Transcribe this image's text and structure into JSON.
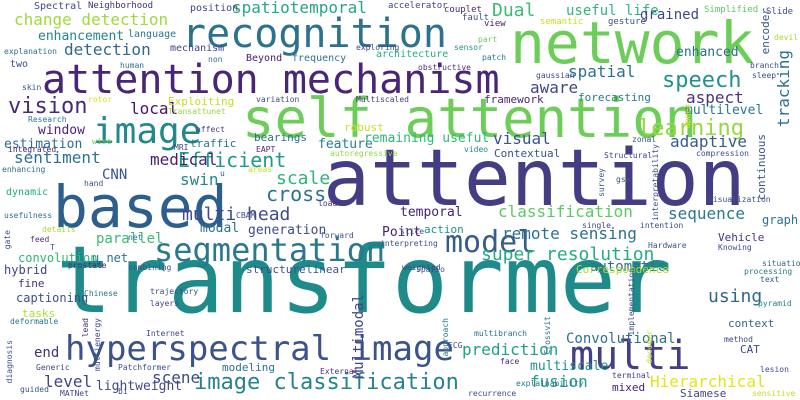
{
  "words": [
    {
      "text": "transformer",
      "color": "#1f8a8a"
    },
    {
      "text": "attention",
      "color": "#433d84"
    },
    {
      "text": "based",
      "color": "#2d5f8e"
    },
    {
      "text": "self attention",
      "color": "#6cce59"
    },
    {
      "text": "network",
      "color": "#6cce59"
    },
    {
      "text": "attention mechanism",
      "color": "#482576"
    },
    {
      "text": "recognition",
      "color": "#2c718e"
    },
    {
      "text": "image",
      "color": "#24878e"
    },
    {
      "text": "hyperspectral image",
      "color": "#3b528b"
    },
    {
      "text": "multi",
      "color": "#433e85"
    },
    {
      "text": "segmentation",
      "color": "#2a788e"
    },
    {
      "text": "model",
      "color": "#375b8d"
    },
    {
      "text": "image classification",
      "color": "#26828e"
    },
    {
      "text": "speech",
      "color": "#21918c"
    },
    {
      "text": "learning",
      "color": "#95d840"
    },
    {
      "text": "vision",
      "color": "#482979"
    },
    {
      "text": "Efficient",
      "color": "#1e9c89"
    },
    {
      "text": "cross",
      "color": "#2c728e"
    },
    {
      "text": "scale",
      "color": "#2fb47c"
    },
    {
      "text": "multi head",
      "color": "#3e4c8a"
    },
    {
      "text": "classification",
      "color": "#5ec962"
    },
    {
      "text": "super resolution",
      "color": "#25ab82"
    },
    {
      "text": "spatiotemporal",
      "color": "#22a785"
    },
    {
      "text": "detection",
      "color": "#31688e"
    },
    {
      "text": "change detection",
      "color": "#a0da39"
    },
    {
      "text": "spatial",
      "color": "#2d708e"
    },
    {
      "text": "Dual",
      "color": "#3bbb75"
    },
    {
      "text": "sequence",
      "color": "#2a788e"
    },
    {
      "text": "prediction",
      "color": "#1fa088"
    },
    {
      "text": "remote sensing",
      "color": "#2d708e"
    },
    {
      "text": "fusion",
      "color": "#1f9e89"
    },
    {
      "text": "level",
      "color": "#414487"
    },
    {
      "text": "scene",
      "color": "#3e4989"
    },
    {
      "text": "visual",
      "color": "#3b528b"
    },
    {
      "text": "medical",
      "color": "#481f70"
    },
    {
      "text": "sentiment",
      "color": "#2c728e"
    },
    {
      "text": "swin",
      "color": "#24868e"
    },
    {
      "text": "local",
      "color": "#481467"
    },
    {
      "text": "aware",
      "color": "#404688"
    },
    {
      "text": "using",
      "color": "#31678e"
    },
    {
      "text": "Hierarchical",
      "color": "#e5e419"
    },
    {
      "text": "tracking",
      "color": "#2c718e"
    },
    {
      "text": "Multimodal",
      "color": "#414487"
    },
    {
      "text": "Convolutional",
      "color": "#2c728e"
    },
    {
      "text": "aspect",
      "color": "#46327e"
    },
    {
      "text": "parallel",
      "color": "#3aba76"
    },
    {
      "text": "CNN",
      "color": "#3b528b"
    },
    {
      "text": "end",
      "color": "#472d7b"
    },
    {
      "text": "adaptive",
      "color": "#375b8d"
    },
    {
      "text": "Point",
      "color": "#481f70"
    },
    {
      "text": "generation",
      "color": "#3e4c8a"
    },
    {
      "text": "automatic",
      "color": "#2c728e"
    },
    {
      "text": "temporal",
      "color": "#482173"
    },
    {
      "text": "window",
      "color": "#482475"
    },
    {
      "text": "estimation",
      "color": "#2e6e8e"
    },
    {
      "text": "modal",
      "color": "#2e6f8e"
    },
    {
      "text": "feature",
      "color": "#287c8e"
    },
    {
      "text": "enhancement",
      "color": "#25848e"
    },
    {
      "text": "useful life",
      "color": "#31b57b"
    },
    {
      "text": "grained",
      "color": "#3f4788"
    },
    {
      "text": "enhanced",
      "color": "#2f6c8e"
    },
    {
      "text": "multilevel",
      "color": "#2a788e"
    },
    {
      "text": "framework",
      "color": "#482878"
    },
    {
      "text": "forecasting",
      "color": "#2a788e"
    },
    {
      "text": "Contextual",
      "color": "#3b528b"
    },
    {
      "text": "remaining useful",
      "color": "#32b67a"
    },
    {
      "text": "multiscale",
      "color": "#21918c"
    },
    {
      "text": "lightweight",
      "color": "#3e4a89"
    },
    {
      "text": "mixed",
      "color": "#481c6e"
    },
    {
      "text": "Siamese",
      "color": "#414487"
    },
    {
      "text": "context",
      "color": "#31688e"
    },
    {
      "text": "CAT",
      "color": "#3e4a89"
    },
    {
      "text": "u net",
      "color": "#2c728e"
    },
    {
      "text": "hybrid",
      "color": "#3f4788"
    },
    {
      "text": "structure",
      "color": "#3d4d8a"
    },
    {
      "text": "linear",
      "color": "#39568c"
    },
    {
      "text": "modeling",
      "color": "#2d708e"
    },
    {
      "text": "Correspondence",
      "color": "#a8db34"
    },
    {
      "text": "Vehicle",
      "color": "#46337f"
    },
    {
      "text": "Exploiting",
      "color": "#c2df23"
    },
    {
      "text": "language",
      "color": "#2a768e"
    },
    {
      "text": "mechanism",
      "color": "#3f4788"
    },
    {
      "text": "frequency",
      "color": "#2c738e"
    },
    {
      "text": "architecture",
      "color": "#25ac82"
    },
    {
      "text": "position",
      "color": "#414487"
    },
    {
      "text": "Spectral",
      "color": "#3f4889"
    },
    {
      "text": "Neighborhood",
      "color": "#472e7c"
    },
    {
      "text": "accelerator",
      "color": "#404588"
    },
    {
      "text": "couplet",
      "color": "#482576"
    },
    {
      "text": "semantic",
      "color": "#c5e021"
    },
    {
      "text": "gesture",
      "color": "#39568c"
    },
    {
      "text": "Simplified",
      "color": "#5cc863"
    },
    {
      "text": "Slide",
      "color": "#3d4e8a"
    },
    {
      "text": "view",
      "color": "#481c6e"
    },
    {
      "text": "fault",
      "color": "#3c508b"
    },
    {
      "text": "convolution",
      "color": "#2fb47c"
    },
    {
      "text": "captioning",
      "color": "#3c508b"
    },
    {
      "text": "fine",
      "color": "#46307e"
    },
    {
      "text": "tasks",
      "color": "#b2dd2d"
    },
    {
      "text": "bearings",
      "color": "#2c718e"
    },
    {
      "text": "robust",
      "color": "#cae11f"
    },
    {
      "text": "traffic",
      "color": "#2c718e"
    },
    {
      "text": "dynamic",
      "color": "#22a785"
    },
    {
      "text": "Beyond",
      "color": "#481a6c"
    },
    {
      "text": "two",
      "color": "#3d4e8a"
    },
    {
      "text": "human",
      "color": "#2e6f8e"
    },
    {
      "text": "non",
      "color": "#2d708e"
    },
    {
      "text": "skin",
      "color": "#3b528b"
    },
    {
      "text": "Research",
      "color": "#2a788e"
    },
    {
      "text": "explanation",
      "color": "#2d708e"
    },
    {
      "text": "rotor",
      "color": "#d5e21a"
    },
    {
      "text": "Transattunet",
      "color": "#95d840"
    },
    {
      "text": "variation",
      "color": "#3d4e8a"
    },
    {
      "text": "Multiscaled",
      "color": "#433e85"
    },
    {
      "text": "gaussian",
      "color": "#3f4889"
    },
    {
      "text": "obstructive",
      "color": "#472f7d"
    },
    {
      "text": "patch",
      "color": "#2a788e"
    },
    {
      "text": "sensor",
      "color": "#21918c"
    },
    {
      "text": "part",
      "color": "#6ccd5a"
    },
    {
      "text": "exploring",
      "color": "#3e4a89"
    },
    {
      "text": "zonal",
      "color": "#3c508b"
    },
    {
      "text": "Structural",
      "color": "#404588"
    },
    {
      "text": "video",
      "color": "#24868e"
    },
    {
      "text": "autoregressive",
      "color": "#95d840"
    },
    {
      "text": "EAPT",
      "color": "#482878"
    },
    {
      "text": "MRI",
      "color": "#3f4788"
    },
    {
      "text": "affect",
      "color": "#443a83"
    },
    {
      "text": "wise",
      "color": "#75d054"
    },
    {
      "text": "integrated",
      "color": "#482677"
    },
    {
      "text": "enhancing",
      "color": "#2e6e8e"
    },
    {
      "text": "hand",
      "color": "#3b528b"
    },
    {
      "text": "usefulness",
      "color": "#2e6e8e"
    },
    {
      "text": "details",
      "color": "#a5db36"
    },
    {
      "text": "feed",
      "color": "#46337f"
    },
    {
      "text": "gate",
      "color": "#3f4889"
    },
    {
      "text": "net",
      "color": "#2d708e"
    },
    {
      "text": "CBAM",
      "color": "#3e4a89"
    },
    {
      "text": "forward",
      "color": "#3b528b"
    },
    {
      "text": "load",
      "color": "#46307e"
    },
    {
      "text": "areas",
      "color": "#c5e021"
    },
    {
      "text": "slice",
      "color": "#3b528b"
    },
    {
      "text": "interpreting",
      "color": "#3c508b"
    },
    {
      "text": "action",
      "color": "#21908d"
    },
    {
      "text": "intention",
      "color": "#3d4e8a"
    },
    {
      "text": "single",
      "color": "#3e4a89"
    },
    {
      "text": "Hardware",
      "color": "#3b528b"
    },
    {
      "text": "Knowing",
      "color": "#3c508b"
    },
    {
      "text": "spatio",
      "color": "#3b528b"
    },
    {
      "text": "situation",
      "color": "#31688e"
    },
    {
      "text": "processing",
      "color": "#2a778e"
    },
    {
      "text": "prostate",
      "color": "#482878"
    },
    {
      "text": "combining",
      "color": "#3c508b"
    },
    {
      "text": "weighted",
      "color": "#3e4c8a"
    },
    {
      "text": "Chinese",
      "color": "#2a788e"
    },
    {
      "text": "trajectory",
      "color": "#3d4e8a"
    },
    {
      "text": "layers",
      "color": "#414487"
    },
    {
      "text": "Internet",
      "color": "#414487"
    },
    {
      "text": "Generic",
      "color": "#3f4788"
    },
    {
      "text": "Patchformer",
      "color": "#3c508b"
    },
    {
      "text": "External",
      "color": "#46337f"
    },
    {
      "text": "face",
      "color": "#482677"
    },
    {
      "text": "multibranch",
      "color": "#2e6f8e"
    },
    {
      "text": "ECG",
      "color": "#3c508b"
    },
    {
      "text": "method",
      "color": "#414487"
    },
    {
      "text": "lesion",
      "color": "#3d4d8a"
    },
    {
      "text": "terminal",
      "color": "#433e85"
    },
    {
      "text": "explainability",
      "color": "#2a788e"
    },
    {
      "text": "recurrence",
      "color": "#3e4989"
    },
    {
      "text": "MATNet",
      "color": "#414487"
    },
    {
      "text": "guided",
      "color": "#3c508b"
    },
    {
      "text": "text",
      "color": "#38598c"
    },
    {
      "text": "pyramid",
      "color": "#25848e"
    },
    {
      "text": "sensitive",
      "color": "#c8e020"
    },
    {
      "text": "deformable",
      "color": "#2c728e"
    },
    {
      "text": "diagnosis",
      "color": "#3b528b"
    },
    {
      "text": "multienergy",
      "color": "#414487"
    },
    {
      "text": "bi",
      "color": "#414487"
    },
    {
      "text": "decoder",
      "color": "#c2df23"
    },
    {
      "text": "Crossvit",
      "color": "#2c728e"
    },
    {
      "text": "approach",
      "color": "#2a768e"
    },
    {
      "text": "lead",
      "color": "#482878"
    },
    {
      "text": "survey",
      "color": "#38598c"
    },
    {
      "text": "visualization",
      "color": "#3b528b"
    },
    {
      "text": "compression",
      "color": "#3d4e8a"
    },
    {
      "text": "graph",
      "color": "#2c738e"
    },
    {
      "text": "continuous",
      "color": "#3b528b"
    },
    {
      "text": "interpretability",
      "color": "#3d4e8a"
    },
    {
      "text": "gsa",
      "color": "#3c508b"
    },
    {
      "text": "apnea",
      "color": "#d8e219"
    },
    {
      "text": "encoder",
      "color": "#38598c"
    },
    {
      "text": "devil",
      "color": "#a2da37"
    },
    {
      "text": "branch",
      "color": "#3d4e8a"
    },
    {
      "text": "sleep",
      "color": "#3f4788"
    },
    {
      "text": "implementation",
      "color": "#3c508b"
    },
    {
      "text": "T",
      "color": "#3b528b"
    },
    {
      "text": "u",
      "color": "#3b528b"
    }
  ]
}
